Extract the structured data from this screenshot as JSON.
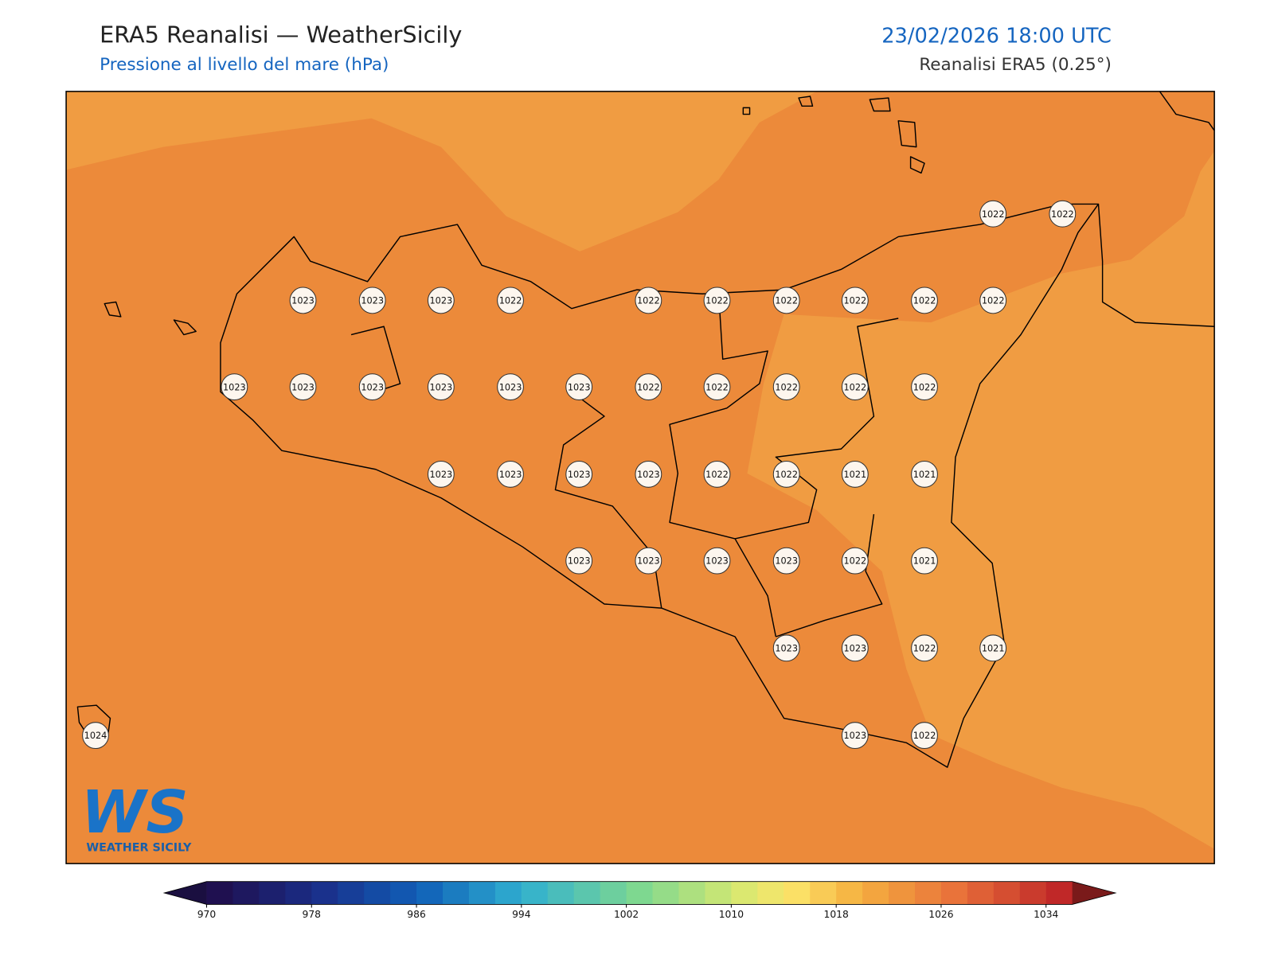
{
  "header": {
    "title": "ERA5 Reanalisi — WeatherSicily",
    "subtitle": "Pressione al livello del mare (hPa)",
    "datetime": "23/02/2026 18:00 UTC",
    "source": "Reanalisi ERA5 (0.25°)"
  },
  "map": {
    "stations": [
      1022,
      1022,
      1023,
      1023,
      1023,
      1022,
      1022,
      1022,
      1022,
      1022,
      1022,
      1022,
      1023,
      1023,
      1023,
      1023,
      1023,
      1023,
      1022,
      1022,
      1022,
      1022,
      1022,
      1023,
      1023,
      1023,
      1023,
      1022,
      1022,
      1021,
      1021,
      1023,
      1023,
      1023,
      1023,
      1022,
      1021,
      1023,
      1023,
      1022,
      1021,
      1024,
      1023,
      1022
    ]
  },
  "colorbar": {
    "lim": [
      970,
      1036
    ],
    "ticks": [
      970,
      978,
      986,
      994,
      1002,
      1010,
      1018,
      1026,
      1034
    ]
  },
  "logo": {
    "mark": "WS",
    "name": "WEATHER SICILY"
  }
}
